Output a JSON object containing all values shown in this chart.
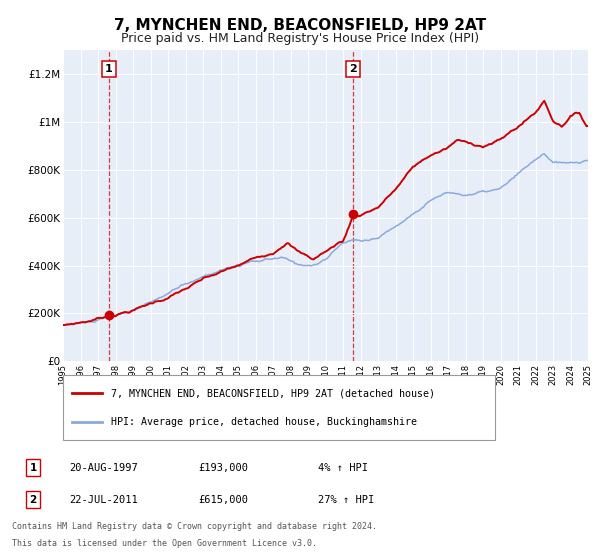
{
  "title": "7, MYNCHEN END, BEACONSFIELD, HP9 2AT",
  "subtitle": "Price paid vs. HM Land Registry's House Price Index (HPI)",
  "legend_line1": "7, MYNCHEN END, BEACONSFIELD, HP9 2AT (detached house)",
  "legend_line2": "HPI: Average price, detached house, Buckinghamshire",
  "sale1_date": "20-AUG-1997",
  "sale1_price": "£193,000",
  "sale1_hpi": "4% ↑ HPI",
  "sale2_date": "22-JUL-2011",
  "sale2_price": "£615,000",
  "sale2_hpi": "27% ↑ HPI",
  "footer1": "Contains HM Land Registry data © Crown copyright and database right 2024.",
  "footer2": "This data is licensed under the Open Government Licence v3.0.",
  "sale1_year": 1997.62,
  "sale2_year": 2011.55,
  "sale1_value": 193000,
  "sale2_value": 615000,
  "property_color": "#cc0000",
  "hpi_color": "#88aadd",
  "ylim_min": 0,
  "ylim_max": 1300000,
  "xmin": 1995,
  "xmax": 2025,
  "yticks": [
    0,
    200000,
    400000,
    600000,
    800000,
    1000000,
    1200000
  ],
  "ytick_labels": [
    "£0",
    "£200K",
    "£400K",
    "£600K",
    "£800K",
    "£1M",
    "£1.2M"
  ],
  "plot_bg_color": "#e8eef8",
  "hpi_anchors_x": [
    1995.0,
    1997.0,
    1998.0,
    2000.0,
    2002.0,
    2004.0,
    2005.0,
    2006.0,
    2007.5,
    2008.5,
    2009.5,
    2010.0,
    2011.0,
    2011.55,
    2012.0,
    2013.0,
    2014.5,
    2016.0,
    2017.0,
    2018.0,
    2019.0,
    2020.0,
    2021.0,
    2022.0,
    2022.5,
    2023.0,
    2024.0,
    2024.9
  ],
  "hpi_anchors_y": [
    148000,
    168000,
    178000,
    230000,
    305000,
    370000,
    390000,
    400000,
    410000,
    375000,
    385000,
    405000,
    470000,
    480000,
    478000,
    495000,
    565000,
    660000,
    690000,
    680000,
    690000,
    700000,
    755000,
    810000,
    840000,
    800000,
    790000,
    800000
  ],
  "prop_anchors_x": [
    1995.0,
    1996.5,
    1997.62,
    1999.0,
    2001.0,
    2003.0,
    2005.0,
    2007.0,
    2007.8,
    2008.5,
    2009.3,
    2009.8,
    2010.3,
    2010.7,
    2011.0,
    2011.55,
    2012.0,
    2013.0,
    2014.0,
    2015.0,
    2016.0,
    2017.0,
    2017.5,
    2018.0,
    2019.0,
    2020.0,
    2021.0,
    2022.0,
    2022.5,
    2023.0,
    2023.5,
    2024.0,
    2024.5,
    2024.9
  ],
  "prop_anchors_y": [
    148000,
    168000,
    193000,
    220000,
    275000,
    345000,
    395000,
    455000,
    510000,
    465000,
    435000,
    460000,
    480000,
    505000,
    510000,
    615000,
    625000,
    660000,
    735000,
    825000,
    875000,
    905000,
    935000,
    925000,
    915000,
    940000,
    995000,
    1055000,
    1105000,
    1025000,
    1005000,
    1050000,
    1060000,
    1010000
  ]
}
